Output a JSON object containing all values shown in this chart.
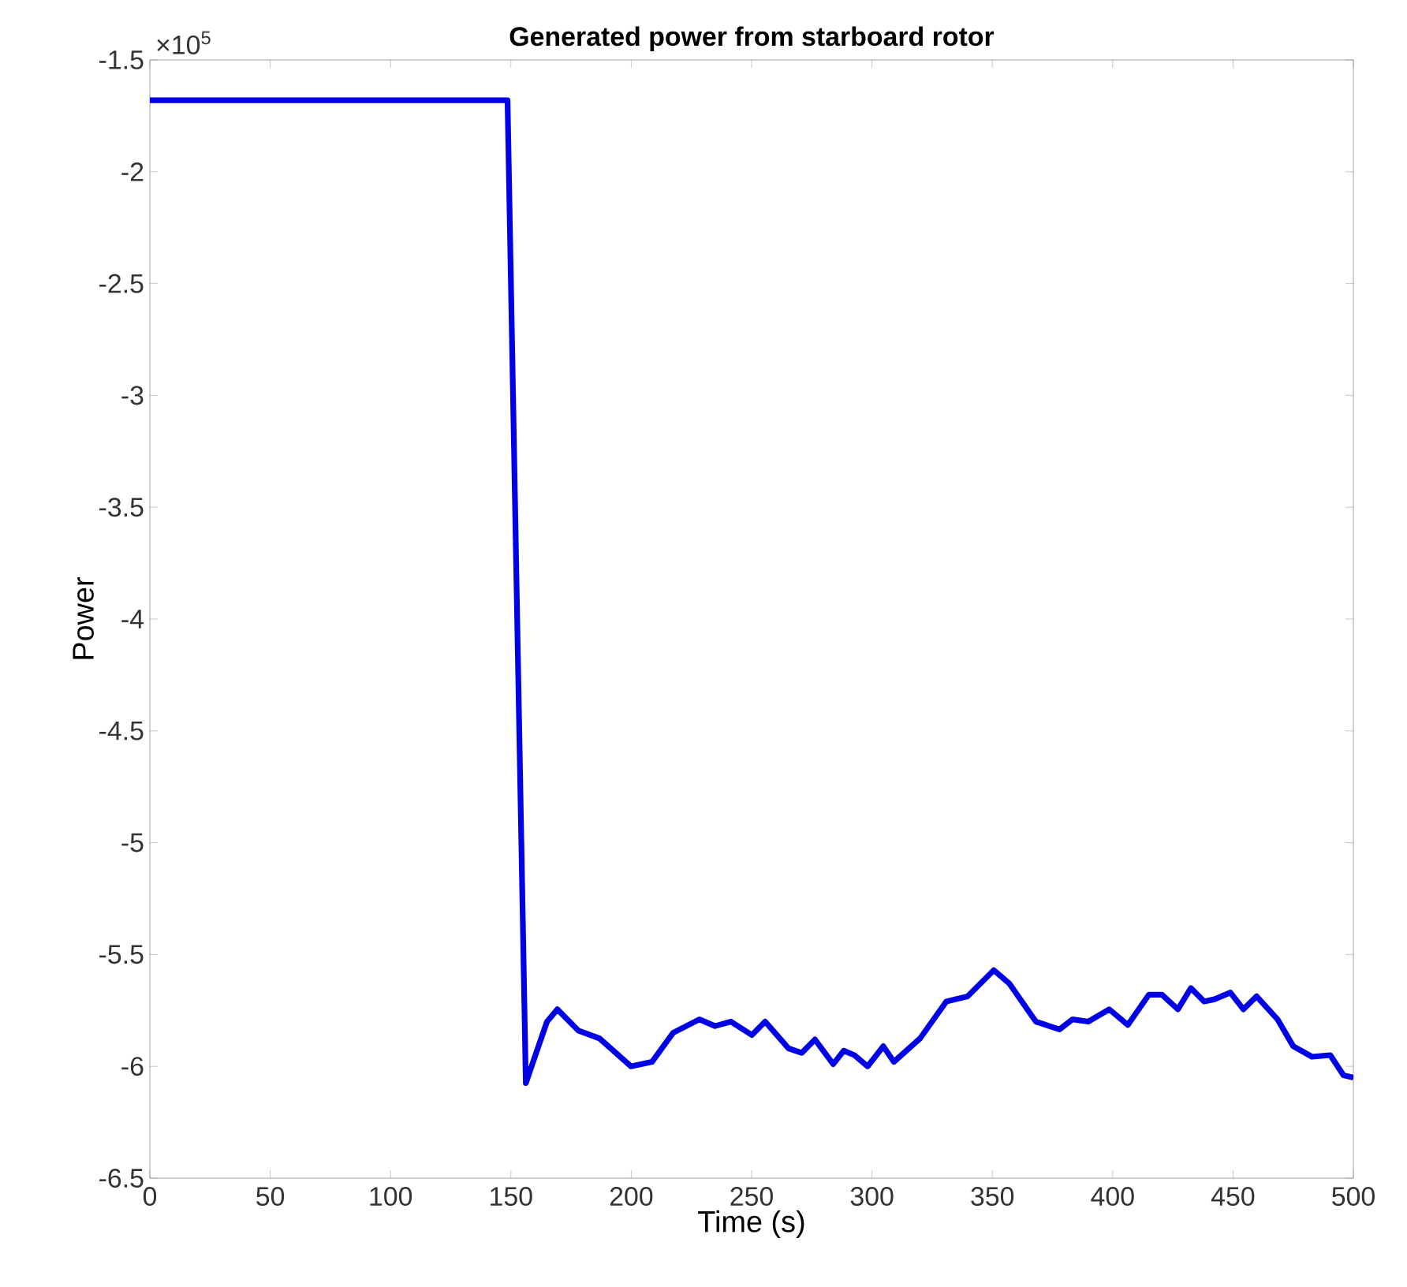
{
  "chart_data": {
    "type": "line",
    "title": "Generated power from starboard rotor",
    "xlabel": "Time (s)",
    "ylabel": "Power",
    "annotations": [
      "×10$^{5}$"
    ],
    "xlim": [
      0,
      500
    ],
    "ylim": [
      -6.5,
      -1.5
    ],
    "xticks": [
      0,
      50,
      100,
      150,
      200,
      250,
      300,
      350,
      400,
      450,
      500
    ],
    "yticks": [
      -6.5,
      -6,
      -5.5,
      -5,
      -4.5,
      -4,
      -3.5,
      -3,
      -2.5,
      -2,
      -1.5
    ],
    "series": [
      {
        "color": "#0000e6",
        "x": [
          0,
          148.6,
          156.2,
          160.5,
          165,
          169.3,
          178,
          186.8,
          199.9,
          208.6,
          217.4,
          228.3,
          234.8,
          241.4,
          250.1,
          255.6,
          265.4,
          270.8,
          276.3,
          283.9,
          288.3,
          292.7,
          298.2,
          304.7,
          309.1,
          320,
          330.9,
          339.7,
          350.6,
          357.1,
          368.1,
          377.9,
          383.3,
          389.9,
          398.6,
          406.3,
          415,
          420.5,
          427.1,
          432.5,
          438,
          442.3,
          448.9,
          454.3,
          459.8,
          468.5,
          475,
          482.8,
          490.4,
          495.9,
          500
        ],
        "values": [
          -1.68,
          -1.68,
          -6.075,
          -5.94,
          -5.8,
          -5.745,
          -5.84,
          -5.875,
          -6.0,
          -5.98,
          -5.85,
          -5.79,
          -5.82,
          -5.8,
          -5.86,
          -5.8,
          -5.92,
          -5.94,
          -5.88,
          -5.99,
          -5.93,
          -5.95,
          -6.0,
          -5.91,
          -5.98,
          -5.875,
          -5.71,
          -5.687,
          -5.57,
          -5.63,
          -5.8,
          -5.835,
          -5.79,
          -5.8,
          -5.745,
          -5.815,
          -5.68,
          -5.68,
          -5.745,
          -5.65,
          -5.71,
          -5.7,
          -5.67,
          -5.745,
          -5.687,
          -5.79,
          -5.91,
          -5.957,
          -5.95,
          -6.04,
          -6.05
        ]
      }
    ]
  }
}
